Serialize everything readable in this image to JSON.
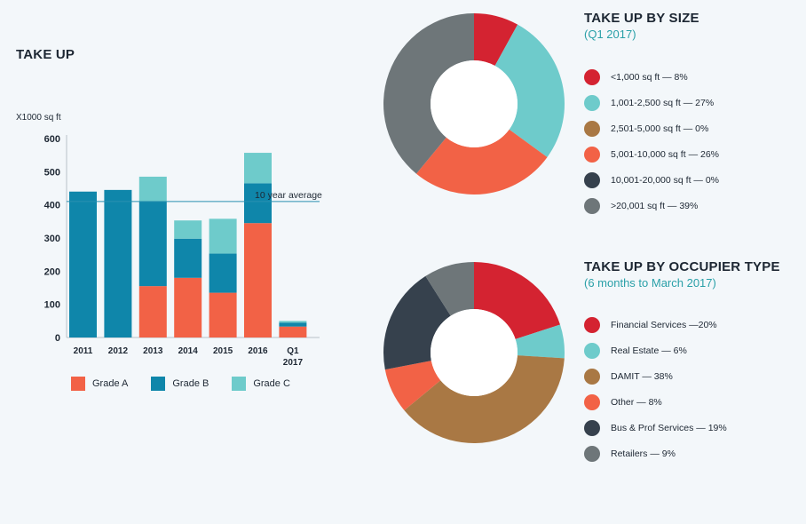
{
  "bar_chart": {
    "title": "TAKE UP",
    "unit_label": "X1000 sq ft"
  },
  "donut_size": {
    "title": "TAKE UP BY SIZE",
    "subtitle": "(Q1 2017)"
  },
  "donut_occupier": {
    "title": "TAKE UP BY OCCUPIER TYPE",
    "subtitle": "(6 months to March 2017)"
  },
  "chart_data": [
    {
      "type": "bar",
      "stacked": true,
      "title": "TAKE UP",
      "ylabel": "X1000 sq ft",
      "ylim": [
        0,
        600
      ],
      "yticks": [
        0,
        100,
        200,
        300,
        400,
        500,
        600
      ],
      "categories": [
        "2011",
        "2012",
        "2013",
        "2014",
        "2015",
        "2016",
        "Q1 2017"
      ],
      "series": [
        {
          "name": "Grade A",
          "color": "#f26246",
          "values": [
            0,
            0,
            155,
            180,
            135,
            345,
            33
          ]
        },
        {
          "name": "Grade B",
          "color": "#0f86aa",
          "values": [
            440,
            445,
            255,
            118,
            118,
            120,
            12
          ]
        },
        {
          "name": "Grade C",
          "color": "#6ecbcb",
          "values": [
            0,
            0,
            75,
            55,
            105,
            92,
            5
          ]
        }
      ],
      "reference_line": {
        "label": "10 year average",
        "value": 410
      }
    },
    {
      "type": "pie",
      "variant": "donut",
      "title": "TAKE UP BY SIZE",
      "subtitle": "(Q1 2017)",
      "slices": [
        {
          "label": "<1,000 sq ft — 8%",
          "value": 8,
          "color": "#d42331"
        },
        {
          "label": "1,001-2,500 sq ft — 27%",
          "value": 27,
          "color": "#6ecbcb"
        },
        {
          "label": "2,501-5,000 sq ft — 0%",
          "value": 0,
          "color": "#a97844"
        },
        {
          "label": "5,001-10,000 sq ft — 26%",
          "value": 26,
          "color": "#f26246"
        },
        {
          "label": "10,001-20,000 sq ft — 0%",
          "value": 0,
          "color": "#36414d"
        },
        {
          "label": ">20,001 sq ft — 39%",
          "value": 39,
          "color": "#6e7679"
        }
      ]
    },
    {
      "type": "pie",
      "variant": "donut",
      "title": "TAKE UP BY OCCUPIER TYPE",
      "subtitle": "(6 months to March 2017)",
      "slices": [
        {
          "label": "Financial Services —20%",
          "value": 20,
          "color": "#d42331"
        },
        {
          "label": "Real Estate — 6%",
          "value": 6,
          "color": "#6ecbcb"
        },
        {
          "label": "DAMIT — 38%",
          "value": 38,
          "color": "#a97844"
        },
        {
          "label": "Other — 8%",
          "value": 8,
          "color": "#f26246"
        },
        {
          "label": "Bus & Prof Services — 19%",
          "value": 19,
          "color": "#36414d"
        },
        {
          "label": "Retailers — 9%",
          "value": 9,
          "color": "#6e7679"
        }
      ]
    }
  ]
}
